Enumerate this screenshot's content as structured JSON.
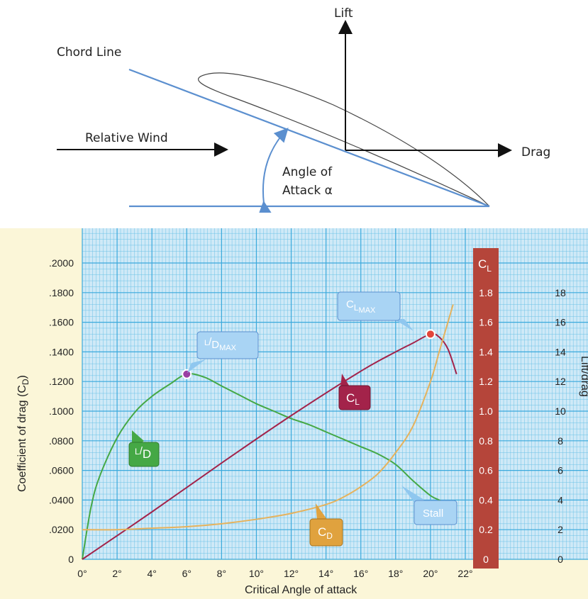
{
  "diagram": {
    "lift_label": "Lift",
    "chord_label": "Chord Line",
    "wind_label": "Relative Wind",
    "drag_label": "Drag",
    "aoa_line1": "Angle of",
    "aoa_line2": "Attack α"
  },
  "colors": {
    "chord_line": "#5b8fcf",
    "grid_bg": "#cfe9f7",
    "grid_line": "#6cc2e6",
    "ld_curve": "#45a845",
    "cl_curve": "#a3234a",
    "cd_curve": "#e6b25c",
    "cl_bar": "#b5453a",
    "frame_bg": "#fbf6d8"
  },
  "chart_data": {
    "type": "line",
    "xlabel": "Critical Angle of attack",
    "ylabel_left": "Coefficient of drag (C",
    "ylabel_left_sub": "D",
    "ylabel_left_end": ")",
    "ylabel_right": "Lift/drag",
    "cl_axis_label": "C",
    "cl_axis_label_sub": "L",
    "x_ticks": [
      "0°",
      "2°",
      "4°",
      "6°",
      "8°",
      "10°",
      "12°",
      "14°",
      "16°",
      "18°",
      "20°",
      "22°"
    ],
    "cd_ticks": [
      "0",
      ".0200",
      ".0400",
      ".0600",
      ".0800",
      ".1000",
      ".1200",
      ".1400",
      ".1600",
      ".1800",
      ".2000"
    ],
    "cl_ticks": [
      "0",
      "0.2",
      "0.4",
      "0.6",
      "0.8",
      "1.0",
      "1.2",
      "1.4",
      "1.6",
      "1.8"
    ],
    "ld_ticks": [
      "0",
      "2",
      "4",
      "6",
      "8",
      "10",
      "12",
      "14",
      "16",
      "18"
    ],
    "xlim": [
      0,
      22
    ],
    "cd_ylim": [
      0,
      0.2
    ],
    "cl_ylim": [
      0,
      2.0
    ],
    "ld_ylim": [
      0,
      20
    ],
    "series": [
      {
        "key": "LD",
        "x": [
          0,
          0.5,
          1,
          2,
          3,
          4,
          5,
          6,
          7,
          8,
          9,
          10,
          11,
          12,
          13,
          14,
          15,
          16,
          17,
          18,
          19,
          20,
          20.5,
          21,
          21.5
        ],
        "values": [
          0,
          3.5,
          5.6,
          8.2,
          9.9,
          11.0,
          11.8,
          12.5,
          12.3,
          11.7,
          11.1,
          10.5,
          10.0,
          9.5,
          9.1,
          8.6,
          8.1,
          7.6,
          7.1,
          6.4,
          5.3,
          4.3,
          4.0,
          3.7,
          3.4
        ]
      },
      {
        "key": "CL",
        "x": [
          0,
          4,
          8,
          12,
          16,
          18,
          19,
          20,
          20.5,
          21,
          21.5
        ],
        "values": [
          0.0,
          0.32,
          0.65,
          0.97,
          1.27,
          1.4,
          1.46,
          1.52,
          1.5,
          1.42,
          1.25
        ]
      },
      {
        "key": "CD",
        "x": [
          0,
          2,
          4,
          6,
          8,
          10,
          12,
          14,
          15,
          16,
          17,
          18,
          19,
          20,
          20.5,
          21,
          21.3
        ],
        "values": [
          0.02,
          0.02,
          0.021,
          0.022,
          0.024,
          0.027,
          0.031,
          0.037,
          0.042,
          0.049,
          0.058,
          0.072,
          0.09,
          0.12,
          0.14,
          0.16,
          0.172
        ]
      }
    ],
    "points": [
      {
        "key": "LD_MAX",
        "x": 6,
        "series": "LD",
        "value": 12.5
      },
      {
        "key": "CL_MAX",
        "x": 20,
        "series": "CL",
        "value": 1.52
      }
    ],
    "callouts": {
      "ld_main": "L",
      "ld_main_sub": "D",
      "ld_max": "L",
      "ld_max_sub": "D",
      "ld_max_subsub": "MAX",
      "cl_max": "C",
      "cl_max_sub": "L",
      "cl_max_subsub": "MAX",
      "cl": "C",
      "cl_sub": "L",
      "cd": "C",
      "cd_sub": "D",
      "stall": "Stall"
    }
  }
}
